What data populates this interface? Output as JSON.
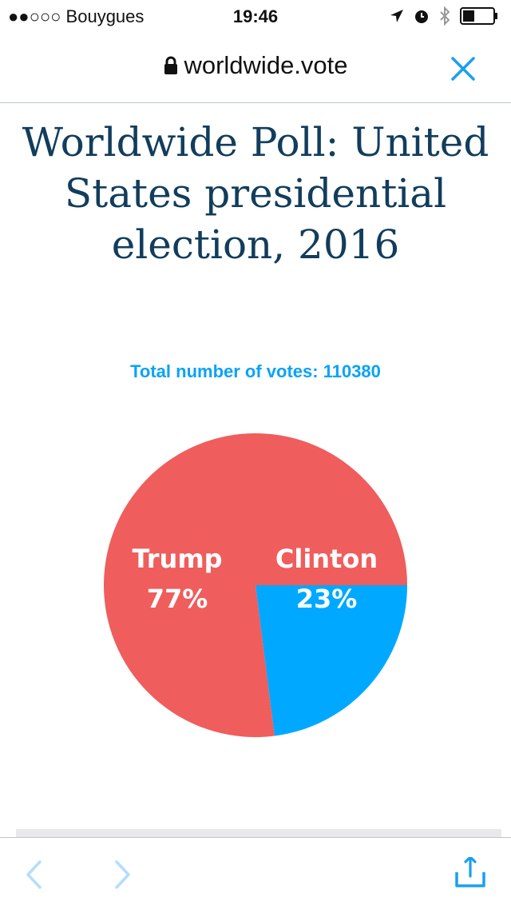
{
  "status_bar": {
    "carrier": "●●○○○ Bouygues",
    "time": "19:46"
  },
  "browser": {
    "url": "worldwide.vote",
    "icons": [
      "lock-icon",
      "close-icon",
      "back-icon",
      "forward-icon",
      "share-icon"
    ]
  },
  "page": {
    "title": "Worldwide Poll: United States presidential election, 2016",
    "total_votes": "Total number of votes: 110380"
  },
  "colors": {
    "trump": "#ef5d5d",
    "clinton": "#00a8ff",
    "title": "#123d5c",
    "accent": "#1a9ff0"
  },
  "chart_data": {
    "type": "pie",
    "slices": [
      {
        "name": "Clinton",
        "value": 23,
        "label": "23%",
        "color": "#00a8ff"
      },
      {
        "name": "Trump",
        "value": 77,
        "label": "77%",
        "color": "#ef5d5d"
      }
    ]
  }
}
